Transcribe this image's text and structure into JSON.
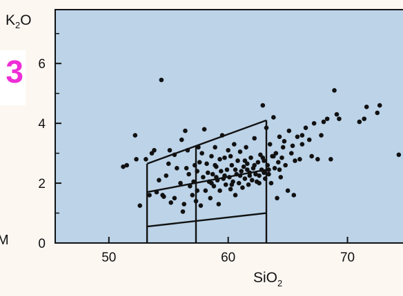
{
  "side_tag": "3",
  "edge_letter": "M",
  "colors": {
    "plot_background": "#bcd3e8",
    "page_background": "#fdf7f2",
    "points": "#111111",
    "fields": "#111111",
    "side_tag": "#ee2ed6"
  },
  "chart_data": {
    "type": "scatter",
    "title": "",
    "xlabel": "SiO",
    "xlabel_subscript": "2",
    "ylabel": "K",
    "ylabel_subscript": "2",
    "ylabel_suffix": "O",
    "xlim": [
      45.5,
      75
    ],
    "ylim": [
      0,
      7.8
    ],
    "xticks": [
      50,
      60,
      70
    ],
    "xtick_labels": [
      "50",
      "60",
      "70"
    ],
    "yticks": [
      0,
      2,
      4,
      6
    ],
    "ytick_labels": [
      "0",
      "2",
      "4",
      "6"
    ],
    "y_minor_ticks": [
      1,
      3,
      5,
      7
    ],
    "grid": false,
    "series": [
      {
        "points": [
          [
            51.2,
            2.55
          ],
          [
            51.5,
            2.6
          ],
          [
            52.2,
            3.6
          ],
          [
            52.3,
            2.8
          ],
          [
            52.6,
            1.25
          ],
          [
            53.1,
            2.8
          ],
          [
            53.4,
            1.6
          ],
          [
            53.6,
            3.0
          ],
          [
            53.8,
            3.1
          ],
          [
            54.0,
            1.7
          ],
          [
            54.2,
            2.1
          ],
          [
            54.4,
            5.45
          ],
          [
            54.6,
            1.55
          ],
          [
            54.8,
            2.25
          ],
          [
            55.0,
            2.65
          ],
          [
            55.1,
            3.1
          ],
          [
            55.2,
            1.35
          ],
          [
            55.5,
            1.5
          ],
          [
            55.7,
            2.5
          ],
          [
            56.0,
            2.0
          ],
          [
            56.1,
            3.45
          ],
          [
            56.2,
            1.05
          ],
          [
            56.4,
            3.75
          ],
          [
            56.5,
            2.5
          ],
          [
            56.6,
            3.1
          ],
          [
            56.8,
            1.9
          ],
          [
            57.0,
            1.6
          ],
          [
            57.2,
            2.6
          ],
          [
            57.3,
            1.4
          ],
          [
            57.4,
            1.75
          ],
          [
            57.5,
            3.2
          ],
          [
            57.6,
            2.7
          ],
          [
            57.7,
            1.25
          ],
          [
            57.9,
            2.2
          ],
          [
            58.0,
            3.8
          ],
          [
            58.1,
            1.75
          ],
          [
            58.3,
            2.35
          ],
          [
            58.4,
            2.05
          ],
          [
            58.5,
            1.5
          ],
          [
            58.6,
            2.9
          ],
          [
            58.7,
            2.3
          ],
          [
            58.8,
            1.9
          ],
          [
            58.9,
            3.2
          ],
          [
            59.0,
            2.55
          ],
          [
            59.1,
            2.1
          ],
          [
            59.2,
            1.3
          ],
          [
            59.3,
            1.75
          ],
          [
            59.4,
            2.4
          ],
          [
            59.5,
            3.6
          ],
          [
            59.6,
            2.15
          ],
          [
            59.7,
            2.85
          ],
          [
            59.8,
            1.95
          ],
          [
            59.9,
            2.45
          ],
          [
            60.0,
            3.1
          ],
          [
            60.1,
            2.2
          ],
          [
            60.2,
            1.8
          ],
          [
            60.3,
            2.6
          ],
          [
            60.4,
            2.05
          ],
          [
            60.5,
            3.3
          ],
          [
            60.6,
            1.6
          ],
          [
            60.7,
            2.3
          ],
          [
            60.8,
            2.75
          ],
          [
            60.9,
            2.0
          ],
          [
            61.0,
            3.05
          ],
          [
            61.1,
            2.4
          ],
          [
            61.2,
            1.85
          ],
          [
            61.3,
            2.55
          ],
          [
            61.4,
            2.15
          ],
          [
            61.5,
            3.2
          ],
          [
            61.6,
            2.65
          ],
          [
            61.7,
            1.95
          ],
          [
            61.8,
            2.35
          ],
          [
            61.9,
            2.85
          ],
          [
            62.0,
            2.1
          ],
          [
            62.1,
            2.5
          ],
          [
            62.2,
            3.5
          ],
          [
            62.3,
            2.3
          ],
          [
            62.4,
            2.05
          ],
          [
            62.5,
            2.7
          ],
          [
            62.6,
            2.25
          ],
          [
            62.7,
            2.95
          ],
          [
            62.8,
            2.45
          ],
          [
            62.9,
            4.6
          ],
          [
            63.0,
            2.35
          ],
          [
            63.1,
            2.15
          ],
          [
            63.2,
            3.85
          ],
          [
            63.3,
            2.6
          ],
          [
            63.4,
            2.3
          ],
          [
            63.5,
            3.3
          ],
          [
            63.6,
            2.0
          ],
          [
            63.7,
            2.9
          ],
          [
            63.8,
            4.2
          ],
          [
            63.9,
            2.5
          ],
          [
            64.0,
            3.0
          ],
          [
            64.1,
            1.5
          ],
          [
            64.2,
            2.7
          ],
          [
            64.3,
            3.55
          ],
          [
            64.4,
            2.2
          ],
          [
            64.5,
            2.85
          ],
          [
            64.6,
            3.2
          ],
          [
            64.8,
            2.6
          ],
          [
            65.0,
            1.75
          ],
          [
            65.1,
            3.75
          ],
          [
            65.3,
            3.0
          ],
          [
            65.5,
            1.6
          ],
          [
            65.6,
            2.75
          ],
          [
            65.8,
            3.55
          ],
          [
            66.0,
            2.8
          ],
          [
            66.2,
            3.3
          ],
          [
            66.5,
            3.85
          ],
          [
            66.8,
            3.45
          ],
          [
            67.0,
            2.9
          ],
          [
            67.2,
            4.0
          ],
          [
            67.5,
            2.8
          ],
          [
            67.8,
            3.6
          ],
          [
            68.0,
            4.05
          ],
          [
            68.3,
            4.15
          ],
          [
            68.6,
            2.8
          ],
          [
            68.9,
            5.1
          ],
          [
            69.1,
            4.3
          ],
          [
            69.3,
            4.15
          ],
          [
            71.0,
            4.05
          ],
          [
            71.4,
            4.15
          ],
          [
            71.6,
            4.55
          ],
          [
            72.5,
            4.35
          ],
          [
            72.7,
            4.6
          ],
          [
            74.3,
            2.95
          ],
          [
            54.5,
            1.6
          ],
          [
            55.5,
            2.95
          ],
          [
            56.7,
            2.3
          ],
          [
            57.1,
            2.05
          ],
          [
            57.8,
            3.0
          ],
          [
            58.2,
            2.65
          ],
          [
            58.6,
            2.0
          ],
          [
            59.3,
            2.8
          ],
          [
            59.7,
            2.25
          ],
          [
            60.2,
            2.9
          ],
          [
            60.6,
            2.45
          ],
          [
            61.0,
            2.25
          ],
          [
            61.4,
            2.75
          ],
          [
            61.8,
            2.25
          ],
          [
            62.2,
            2.6
          ],
          [
            62.6,
            2.0
          ],
          [
            63.0,
            2.75
          ],
          [
            63.4,
            2.45
          ],
          [
            63.8,
            2.9
          ],
          [
            64.3,
            2.45
          ],
          [
            56.3,
            1.3
          ],
          [
            57.4,
            2.4
          ],
          [
            58.9,
            2.6
          ],
          [
            60.3,
            1.95
          ],
          [
            61.6,
            2.45
          ],
          [
            62.9,
            2.85
          ],
          [
            64.7,
            3.4
          ],
          [
            66.2,
            3.6
          ],
          [
            65.4,
            3.25
          ],
          [
            59.0,
            2.2
          ]
        ]
      }
    ],
    "fields": {
      "x_bounds": [
        53.2,
        57.3,
        63.2
      ],
      "lower_line": [
        [
          53.2,
          0.55
        ],
        [
          63.2,
          1.0
        ]
      ],
      "middle_line": [
        [
          53.2,
          1.7
        ],
        [
          63.2,
          2.45
        ]
      ],
      "upper_line": [
        [
          53.2,
          2.65
        ],
        [
          63.2,
          4.1
        ]
      ]
    }
  }
}
